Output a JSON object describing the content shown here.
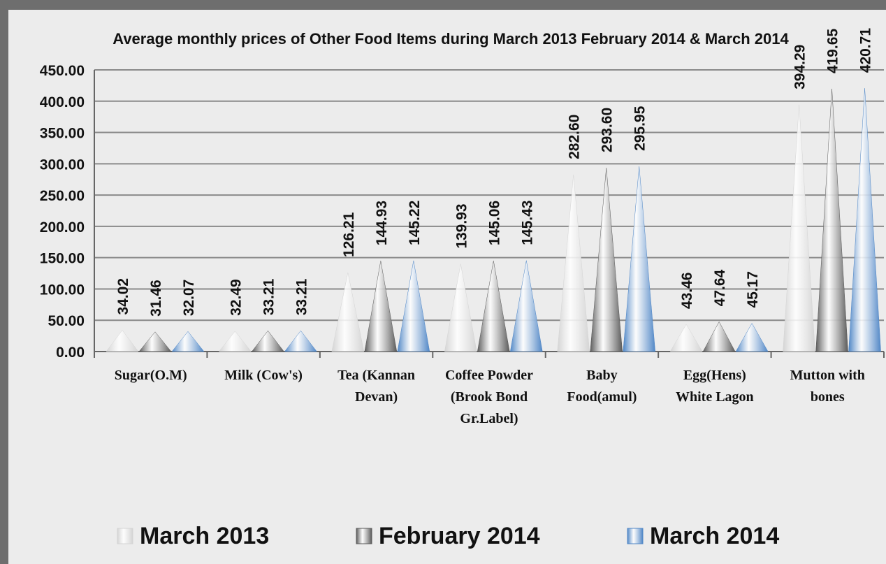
{
  "chart_data": {
    "type": "bar",
    "title": "Average monthly prices of Other Food Items during  March  2013 February 2014 & March 2014",
    "categories": [
      "Sugar(O.M)",
      "Milk (Cow's)",
      "Tea (Kannan Devan)",
      "Coffee Powder (Brook Bond Gr.Label)",
      "Baby Food(amul)",
      "Egg(Hens) White Lagon",
      "Mutton with bones"
    ],
    "series": [
      {
        "name": "March 2013",
        "color": "#d4d4d4",
        "values": [
          34.02,
          32.49,
          126.21,
          139.93,
          282.6,
          43.46,
          394.29
        ],
        "value_labels": [
          "34.02",
          "32.49",
          "126.21",
          "139.93",
          "282.60",
          "43.46",
          "394.29"
        ]
      },
      {
        "name": "February 2014",
        "color": "#5a5a5a",
        "values": [
          31.46,
          33.21,
          144.93,
          145.06,
          293.6,
          47.64,
          419.65
        ],
        "value_labels": [
          "31.46",
          "33.21",
          "144.93",
          "145.06",
          "293.60",
          "47.64",
          "419.65"
        ]
      },
      {
        "name": "March 2014",
        "color": "#4f86c6",
        "values": [
          32.07,
          33.21,
          145.22,
          145.43,
          295.95,
          45.17,
          420.71
        ],
        "value_labels": [
          "32.07",
          "33.21",
          "145.22",
          "145.43",
          "295.95",
          "45.17",
          "420.71"
        ]
      }
    ],
    "ylim": [
      0,
      450
    ],
    "yticks": [
      {
        "value": 0,
        "label": "0.00"
      },
      {
        "value": 50,
        "label": "50.00"
      },
      {
        "value": 100,
        "label": "100.00"
      },
      {
        "value": 150,
        "label": "150.00"
      },
      {
        "value": 200,
        "label": "200.00"
      },
      {
        "value": 250,
        "label": "250.00"
      },
      {
        "value": 300,
        "label": "300.00"
      },
      {
        "value": 350,
        "label": "350.00"
      },
      {
        "value": 400,
        "label": "400.00"
      },
      {
        "value": 450,
        "label": "450.00"
      }
    ],
    "grid": true,
    "legend": "bottom"
  }
}
